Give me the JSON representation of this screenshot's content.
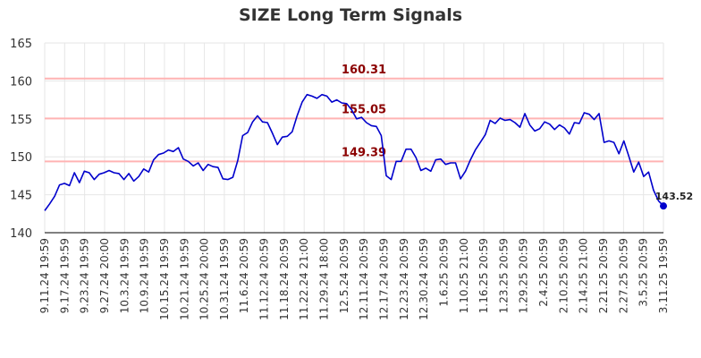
{
  "chart_data": {
    "type": "line",
    "title": "SIZE Long Term Signals",
    "xlabel": "",
    "ylabel": "",
    "ylim": [
      140,
      165
    ],
    "yticks": [
      140,
      145,
      150,
      155,
      160,
      165
    ],
    "grid": true,
    "colors": {
      "line": "#0000cc",
      "reference": "#ffb3b3",
      "reference_label": "#8b0000",
      "grid": "#e6e6e6"
    },
    "x_tick_labels": [
      "9.11.24 19:59",
      "9.17.24 19:59",
      "9.23.24 19:59",
      "9.27.24 20:00",
      "10.3.24 19:59",
      "10.9.24 19:59",
      "10.15.24 19:59",
      "10.21.24 19:59",
      "10.25.24 20:00",
      "10.31.24 19:59",
      "11.6.24 20:59",
      "11.12.24 20:59",
      "11.18.24 20:59",
      "11.22.24 21:00",
      "11.29.24 18:00",
      "12.5.24 20:59",
      "12.11.24 20:59",
      "12.17.24 20:59",
      "12.23.24 20:59",
      "12.30.24 20:59",
      "1.6.25 20:59",
      "1.10.25 21:00",
      "1.16.25 20:59",
      "1.23.25 20:59",
      "1.29.25 20:59",
      "2.4.25 20:59",
      "2.10.25 20:59",
      "2.14.25 21:00",
      "2.21.25 20:59",
      "2.27.25 20:59",
      "3.5.25 20:59",
      "3.11.25 19:59"
    ],
    "reference_lines": [
      {
        "value": 160.31,
        "label": "160.31"
      },
      {
        "value": 155.05,
        "label": "155.05"
      },
      {
        "value": 149.39,
        "label": "149.39"
      }
    ],
    "last_point": {
      "value": 143.52,
      "label": "143.52"
    },
    "series": [
      {
        "values": [
          142.9,
          143.8,
          144.8,
          146.3,
          146.5,
          146.2,
          147.9,
          146.6,
          148.1,
          147.9,
          147.0,
          147.7,
          147.9,
          148.2,
          147.9,
          147.8,
          147.0,
          147.8,
          146.8,
          147.4,
          148.4,
          148.0,
          149.6,
          150.3,
          150.5,
          150.9,
          150.7,
          151.2,
          149.7,
          149.4,
          148.8,
          149.2,
          148.2,
          149.0,
          148.7,
          148.6,
          147.1,
          147.0,
          147.3,
          149.5,
          152.8,
          153.2,
          154.6,
          155.4,
          154.6,
          154.5,
          153.1,
          151.6,
          152.6,
          152.7,
          153.3,
          155.4,
          157.2,
          158.2,
          158.0,
          157.7,
          158.2,
          158.0,
          157.2,
          157.5,
          157.1,
          157.0,
          156.2,
          155.0,
          155.2,
          154.5,
          154.1,
          154.0,
          152.8,
          147.5,
          147.0,
          149.4,
          149.4,
          151.0,
          151.0,
          149.9,
          148.2,
          148.5,
          148.1,
          149.6,
          149.7,
          149.0,
          149.2,
          149.2,
          147.1,
          148.1,
          149.6,
          150.9,
          151.9,
          152.9,
          154.8,
          154.4,
          155.1,
          154.8,
          154.9,
          154.5,
          153.9,
          155.7,
          154.2,
          153.4,
          153.7,
          154.6,
          154.3,
          153.6,
          154.2,
          153.8,
          153.0,
          154.5,
          154.4,
          155.8,
          155.6,
          154.9,
          155.7,
          151.9,
          152.1,
          151.9,
          150.4,
          152.1,
          150.1,
          148.0,
          149.3,
          147.4,
          148.0,
          145.6,
          144.2,
          143.52
        ]
      }
    ]
  }
}
